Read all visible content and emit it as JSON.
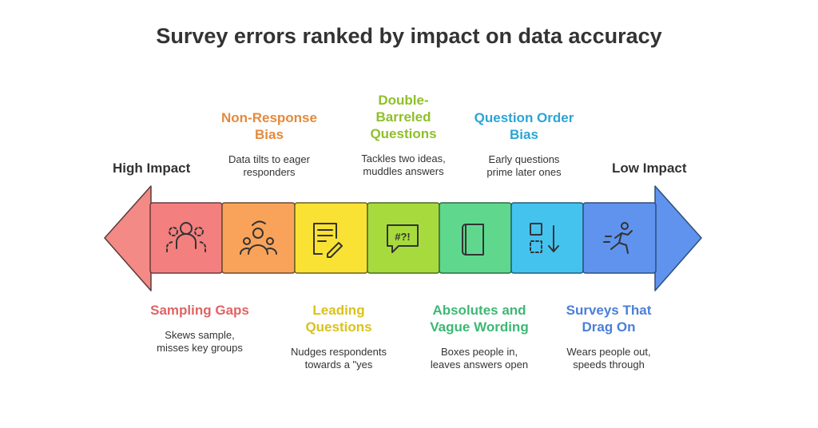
{
  "title": "Survey errors ranked by impact on data accuracy",
  "ends": {
    "left": "High Impact",
    "right": "Low Impact"
  },
  "colors": {
    "left_arrow": "#f08b86",
    "right_arrow": "#6aa2f0",
    "sampling": "#e06464",
    "nonresponse": "#e48a3c",
    "leading": "#d9c21c",
    "double": "#8fbf2a",
    "absolutes": "#3db874",
    "order": "#2aa5d6",
    "drag": "#4a7fd8"
  },
  "segments": [
    {
      "id": "sampling",
      "icon": "group-icon",
      "fill": "#f47f7f"
    },
    {
      "id": "nonresponse",
      "icon": "crowd-icon",
      "fill": "#f9a35a"
    },
    {
      "id": "leading",
      "icon": "document-pen-icon",
      "fill": "#f9e234"
    },
    {
      "id": "double",
      "icon": "speech-symbols-icon",
      "fill": "#a7db3d"
    },
    {
      "id": "absolutes",
      "icon": "book-icon",
      "fill": "#5fd88e"
    },
    {
      "id": "order",
      "icon": "sort-order-icon",
      "fill": "#45c3ef"
    },
    {
      "id": "drag",
      "icon": "runner-icon",
      "fill": "#5f93ee"
    }
  ],
  "labels": {
    "sampling": {
      "title": "Sampling Gaps",
      "desc_1": "Skews sample,",
      "desc_2": "misses key groups"
    },
    "nonresponse": {
      "title_1": "Non-Response",
      "title_2": "Bias",
      "desc_1": "Data tilts to eager",
      "desc_2": "responders"
    },
    "leading": {
      "title_1": "Leading",
      "title_2": "Questions",
      "desc_1": "Nudges respondents",
      "desc_2": "towards a \"yes"
    },
    "double": {
      "title_1": "Double-",
      "title_2": "Barreled",
      "title_3": "Questions",
      "desc_1": "Tackles two ideas,",
      "desc_2": "muddles answers"
    },
    "absolutes": {
      "title_1": "Absolutes and",
      "title_2": "Vague Wording",
      "desc_1": "Boxes people in,",
      "desc_2": "leaves answers open"
    },
    "order": {
      "title_1": "Question Order",
      "title_2": "Bias",
      "desc_1": "Early questions",
      "desc_2": "prime later ones"
    },
    "drag": {
      "title_1": "Surveys That",
      "title_2": "Drag On",
      "desc_1": "Wears people out,",
      "desc_2": "speeds through"
    }
  }
}
